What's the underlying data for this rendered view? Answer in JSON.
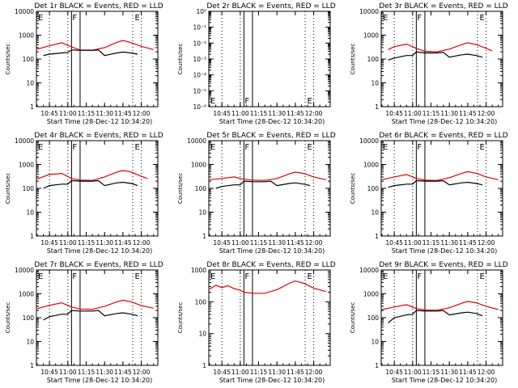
{
  "colors": {
    "events": "#000000",
    "lld": "#e00000",
    "axes": "#000000",
    "background": "#ffffff"
  },
  "chart_data": [
    {
      "type": "line",
      "title": "Det 1r BLACK = Events, RED = LLD",
      "xlabel": "Start Time (28-Dec-12 10:34:20)",
      "ylabel": "Counts/sec",
      "yscale": "log",
      "ylim": [
        1,
        10000
      ],
      "ytick_labels": [
        "1",
        "10",
        "100",
        "1000",
        "10000"
      ],
      "xlim": [
        "10:34:20",
        "12:13:30"
      ],
      "xtick_labels": [
        "10:45",
        "11:00",
        "11:15",
        "11:30",
        "11:45",
        "12:00"
      ],
      "time_markers": {
        "dotted": [
          "10:45",
          "11:00",
          "11:53",
          "12:00"
        ],
        "solid": [
          "11:03",
          "11:10"
        ]
      },
      "flags": [
        {
          "text": "E",
          "time": "10:35"
        },
        {
          "text": "F",
          "time": "11:03"
        },
        {
          "text": "E",
          "time": "11:54"
        }
      ],
      "series": [
        {
          "role": "LLD",
          "color": "#e00000",
          "x": [
            "10:35",
            "10:45",
            "10:55",
            "11:03",
            "11:10",
            "11:20",
            "11:30",
            "11:40",
            "11:45",
            "11:52",
            "12:00",
            "12:10"
          ],
          "y": [
            260,
            360,
            480,
            320,
            240,
            235,
            300,
            500,
            600,
            480,
            340,
            250
          ]
        },
        {
          "role": "Events",
          "color": "#000000",
          "x": [
            "10:40",
            "10:45",
            "10:55",
            "11:00",
            "11:03",
            "11:10",
            "11:20",
            "11:25",
            "11:30",
            "11:40",
            "11:45",
            "11:52",
            "11:57"
          ],
          "y": [
            140,
            160,
            180,
            190,
            240,
            230,
            230,
            240,
            140,
            180,
            195,
            180,
            160
          ]
        }
      ]
    },
    {
      "type": "line",
      "title": "Det 2r BLACK = Events, RED = LLD",
      "xlabel": "Start Time (28-Dec-12 10:34:20)",
      "ylabel": "Counts/sec",
      "yscale": "log",
      "ylim": [
        1e-06,
        1
      ],
      "ytick_labels": [
        "10⁻⁶",
        "10⁻⁵",
        "10⁻⁴",
        "10⁻³",
        "10⁻²",
        "10⁻¹",
        "10⁰"
      ],
      "xlim": [
        "10:34:20",
        "12:13:30"
      ],
      "xtick_labels": [
        "10:45",
        "11:00",
        "11:15",
        "11:30",
        "11:45",
        "12:00"
      ],
      "time_markers": {
        "dotted": [
          "10:45",
          "11:00",
          "11:53",
          "12:00"
        ],
        "solid": [
          "11:03",
          "11:10"
        ]
      },
      "flags": [
        {
          "text": "E",
          "time": "10:35"
        },
        {
          "text": "F",
          "time": "11:03"
        },
        {
          "text": "E",
          "time": "11:54"
        }
      ],
      "series": []
    },
    {
      "type": "line",
      "title": "Det 3r BLACK = Events, RED = LLD",
      "xlabel": "Start Time (28-Dec-12 10:34:20)",
      "ylabel": "Counts/sec",
      "yscale": "log",
      "ylim": [
        1,
        10000
      ],
      "ytick_labels": [
        "1",
        "10",
        "100",
        "1000",
        "10000"
      ],
      "xlim": [
        "10:34:20",
        "12:13:30"
      ],
      "xtick_labels": [
        "10:45",
        "11:00",
        "11:15",
        "11:30",
        "11:45",
        "12:00"
      ],
      "time_markers": {
        "dotted": [
          "10:45",
          "11:00",
          "11:53",
          "12:00"
        ],
        "solid": [
          "11:03",
          "11:10"
        ]
      },
      "flags": [
        {
          "text": "E",
          "time": "10:35"
        },
        {
          "text": "F",
          "time": "11:03"
        },
        {
          "text": "E",
          "time": "11:54"
        }
      ],
      "series": [
        {
          "role": "LLD",
          "color": "#e00000",
          "x": [
            "10:40",
            "10:45",
            "10:55",
            "11:03",
            "11:10",
            "11:20",
            "11:30",
            "11:40",
            "11:45",
            "11:52",
            "12:00",
            "12:05"
          ],
          "y": [
            250,
            330,
            420,
            280,
            210,
            200,
            260,
            400,
            480,
            400,
            280,
            220
          ]
        },
        {
          "role": "Events",
          "color": "#000000",
          "x": [
            "10:40",
            "10:45",
            "10:55",
            "11:00",
            "11:03",
            "11:10",
            "11:20",
            "11:25",
            "11:30",
            "11:40",
            "11:45",
            "11:52",
            "11:57"
          ],
          "y": [
            90,
            110,
            140,
            140,
            200,
            180,
            180,
            190,
            120,
            150,
            160,
            140,
            120
          ]
        }
      ]
    },
    {
      "type": "line",
      "title": "Det 4r BLACK = Events, RED = LLD",
      "xlabel": "Start Time (28-Dec-12 10:34:20)",
      "ylabel": "Counts/sec",
      "yscale": "log",
      "ylim": [
        1,
        10000
      ],
      "ytick_labels": [
        "1",
        "10",
        "100",
        "1000",
        "10000"
      ],
      "xlim": [
        "10:34:20",
        "12:13:30"
      ],
      "xtick_labels": [
        "10:45",
        "11:00",
        "11:15",
        "11:30",
        "11:45",
        "12:00"
      ],
      "time_markers": {
        "dotted": [
          "10:45",
          "11:00",
          "11:53",
          "12:00"
        ],
        "solid": [
          "11:03",
          "11:10"
        ]
      },
      "flags": [
        {
          "text": "E",
          "time": "10:35"
        },
        {
          "text": "F",
          "time": "11:03"
        },
        {
          "text": "E",
          "time": "11:54"
        }
      ],
      "series": [
        {
          "role": "LLD",
          "color": "#e00000",
          "x": [
            "10:35",
            "10:45",
            "10:55",
            "11:03",
            "11:10",
            "11:20",
            "11:30",
            "11:40",
            "11:45",
            "11:52",
            "12:00",
            "12:05"
          ],
          "y": [
            250,
            380,
            420,
            260,
            220,
            215,
            300,
            480,
            560,
            480,
            320,
            260
          ]
        },
        {
          "role": "Events",
          "color": "#000000",
          "x": [
            "10:40",
            "10:45",
            "10:55",
            "11:00",
            "11:03",
            "11:10",
            "11:20",
            "11:25",
            "11:30",
            "11:40",
            "11:45",
            "11:52",
            "11:57"
          ],
          "y": [
            100,
            130,
            150,
            150,
            210,
            200,
            200,
            210,
            130,
            170,
            180,
            160,
            130
          ]
        }
      ]
    },
    {
      "type": "line",
      "title": "Det 5r BLACK = Events, RED = LLD",
      "xlabel": "Start Time (28-Dec-12 10:34:20)",
      "ylabel": "Counts/sec",
      "yscale": "log",
      "ylim": [
        1,
        10000
      ],
      "ytick_labels": [
        "1",
        "10",
        "100",
        "1000",
        "10000"
      ],
      "xlim": [
        "10:34:20",
        "12:13:30"
      ],
      "xtick_labels": [
        "10:45",
        "11:00",
        "11:15",
        "11:30",
        "11:45",
        "12:00"
      ],
      "time_markers": {
        "dotted": [
          "10:45",
          "11:00",
          "11:53",
          "12:00"
        ],
        "solid": [
          "11:03",
          "11:10"
        ]
      },
      "flags": [
        {
          "text": "E",
          "time": "10:35"
        },
        {
          "text": "F",
          "time": "11:03"
        },
        {
          "text": "E",
          "time": "11:54"
        }
      ],
      "series": [
        {
          "role": "LLD",
          "color": "#e00000",
          "x": [
            "10:35",
            "10:45",
            "10:55",
            "11:03",
            "11:10",
            "11:20",
            "11:30",
            "11:40",
            "11:45",
            "11:52",
            "12:00",
            "12:10"
          ],
          "y": [
            230,
            260,
            300,
            240,
            220,
            215,
            260,
            400,
            480,
            420,
            300,
            230
          ]
        },
        {
          "role": "Events",
          "color": "#000000",
          "x": [
            "10:40",
            "10:45",
            "10:55",
            "11:00",
            "11:03",
            "11:10",
            "11:20",
            "11:25",
            "11:30",
            "11:40",
            "11:45",
            "11:52",
            "11:57"
          ],
          "y": [
            100,
            120,
            140,
            140,
            200,
            190,
            190,
            200,
            130,
            160,
            170,
            150,
            130
          ]
        }
      ]
    },
    {
      "type": "line",
      "title": "Det 6r BLACK = Events, RED = LLD",
      "xlabel": "Start Time (28-Dec-12 10:34:20)",
      "ylabel": "Counts/sec",
      "yscale": "log",
      "ylim": [
        1,
        10000
      ],
      "ytick_labels": [
        "1",
        "10",
        "100",
        "1000",
        "10000"
      ],
      "xlim": [
        "10:34:20",
        "12:13:30"
      ],
      "xtick_labels": [
        "10:45",
        "11:00",
        "11:15",
        "11:30",
        "11:45",
        "12:00"
      ],
      "time_markers": {
        "dotted": [
          "10:45",
          "11:00",
          "11:53",
          "12:00"
        ],
        "solid": [
          "11:03",
          "11:10"
        ]
      },
      "flags": [
        {
          "text": "E",
          "time": "10:35"
        },
        {
          "text": "F",
          "time": "11:03"
        },
        {
          "text": "E",
          "time": "11:54"
        }
      ],
      "series": [
        {
          "role": "LLD",
          "color": "#e00000",
          "x": [
            "10:35",
            "10:45",
            "10:55",
            "11:03",
            "11:10",
            "11:20",
            "11:30",
            "11:40",
            "11:45",
            "11:52",
            "12:00",
            "12:10"
          ],
          "y": [
            230,
            300,
            380,
            260,
            220,
            215,
            280,
            420,
            500,
            430,
            300,
            230
          ]
        },
        {
          "role": "Events",
          "color": "#000000",
          "x": [
            "10:40",
            "10:45",
            "10:55",
            "11:00",
            "11:03",
            "11:10",
            "11:20",
            "11:25",
            "11:30",
            "11:40",
            "11:45",
            "11:52",
            "11:57"
          ],
          "y": [
            110,
            130,
            150,
            150,
            210,
            200,
            200,
            210,
            140,
            170,
            180,
            160,
            140
          ]
        }
      ]
    },
    {
      "type": "line",
      "title": "Det 7r BLACK = Events, RED = LLD",
      "xlabel": "Start Time (28-Dec-12 10:34:20)",
      "ylabel": "Counts/sec",
      "yscale": "log",
      "ylim": [
        1,
        10000
      ],
      "ytick_labels": [
        "1",
        "10",
        "100",
        "1000",
        "10000"
      ],
      "xlim": [
        "10:34:20",
        "12:13:30"
      ],
      "xtick_labels": [
        "10:45",
        "11:00",
        "11:15",
        "11:30",
        "11:45",
        "12:00"
      ],
      "time_markers": {
        "dotted": [
          "10:45",
          "11:00",
          "11:53",
          "12:00"
        ],
        "solid": [
          "11:03",
          "11:10"
        ]
      },
      "flags": [
        {
          "text": "E",
          "time": "10:35"
        },
        {
          "text": "F",
          "time": "11:03"
        },
        {
          "text": "E",
          "time": "11:54"
        }
      ],
      "series": [
        {
          "role": "LLD",
          "color": "#e00000",
          "x": [
            "10:35",
            "10:45",
            "10:55",
            "11:03",
            "11:10",
            "11:20",
            "11:30",
            "11:40",
            "11:45",
            "11:52",
            "12:00",
            "12:10"
          ],
          "y": [
            240,
            330,
            420,
            280,
            230,
            225,
            300,
            460,
            540,
            460,
            320,
            250
          ]
        },
        {
          "role": "Events",
          "color": "#000000",
          "x": [
            "10:40",
            "10:45",
            "10:55",
            "11:00",
            "11:03",
            "11:10",
            "11:20",
            "11:25",
            "11:30",
            "11:40",
            "11:45",
            "11:52",
            "11:57"
          ],
          "y": [
            80,
            110,
            140,
            140,
            200,
            190,
            190,
            200,
            120,
            150,
            160,
            140,
            120
          ]
        }
      ]
    },
    {
      "type": "line",
      "title": "Det 8r BLACK = Events, RED = LLD",
      "xlabel": "Start Time (28-Dec-12 10:34:20)",
      "ylabel": "Counts/sec",
      "yscale": "log",
      "ylim": [
        1,
        1000
      ],
      "ytick_labels": [
        "1",
        "10",
        "100",
        "1000"
      ],
      "xlim": [
        "10:34:20",
        "12:13:30"
      ],
      "xtick_labels": [
        "10:45",
        "11:00",
        "11:15",
        "11:30",
        "11:45",
        "12:00"
      ],
      "time_markers": {
        "dotted": [
          "10:45",
          "11:00",
          "11:53",
          "12:00"
        ],
        "solid": [
          "11:03",
          "11:10"
        ]
      },
      "flags": [
        {
          "text": "E",
          "time": "10:35"
        },
        {
          "text": "F",
          "time": "11:03"
        },
        {
          "text": "E",
          "time": "11:54"
        }
      ],
      "series": [
        {
          "role": "LLD",
          "color": "#e00000",
          "x": [
            "10:35",
            "10:40",
            "10:45",
            "10:50",
            "10:55",
            "11:00",
            "11:03",
            "11:10",
            "11:20",
            "11:30",
            "11:40",
            "11:45",
            "11:52",
            "12:00",
            "12:10"
          ],
          "y": [
            250,
            330,
            280,
            320,
            260,
            230,
            200,
            185,
            185,
            240,
            380,
            450,
            380,
            270,
            210
          ]
        }
      ]
    },
    {
      "type": "line",
      "title": "Det 9r BLACK = Events, RED = LLD",
      "xlabel": "Start Time (28-Dec-12 10:34:20)",
      "ylabel": "Counts/sec",
      "yscale": "log",
      "ylim": [
        1,
        10000
      ],
      "ytick_labels": [
        "1",
        "10",
        "100",
        "1000",
        "10000"
      ],
      "xlim": [
        "10:34:20",
        "12:13:30"
      ],
      "xtick_labels": [
        "10:45",
        "11:00",
        "11:15",
        "11:30",
        "11:45",
        "12:00"
      ],
      "time_markers": {
        "dotted": [
          "10:45",
          "11:00",
          "11:53",
          "12:00"
        ],
        "solid": [
          "11:03",
          "11:10"
        ]
      },
      "flags": [
        {
          "text": "E",
          "time": "10:35"
        },
        {
          "text": "F",
          "time": "11:03"
        },
        {
          "text": "E",
          "time": "11:54"
        }
      ],
      "series": [
        {
          "role": "LLD",
          "color": "#e00000",
          "x": [
            "10:35",
            "10:45",
            "10:55",
            "11:03",
            "11:10",
            "11:20",
            "11:30",
            "11:40",
            "11:45",
            "11:52",
            "12:00",
            "12:10"
          ],
          "y": [
            220,
            280,
            350,
            240,
            210,
            205,
            260,
            400,
            480,
            420,
            300,
            220
          ]
        },
        {
          "role": "Events",
          "color": "#000000",
          "x": [
            "10:40",
            "10:45",
            "10:55",
            "11:00",
            "11:03",
            "11:10",
            "11:20",
            "11:25",
            "11:30",
            "11:40",
            "11:45",
            "11:52",
            "11:57"
          ],
          "y": [
            60,
            100,
            130,
            140,
            200,
            190,
            190,
            200,
            130,
            160,
            170,
            150,
            120
          ]
        }
      ]
    }
  ]
}
